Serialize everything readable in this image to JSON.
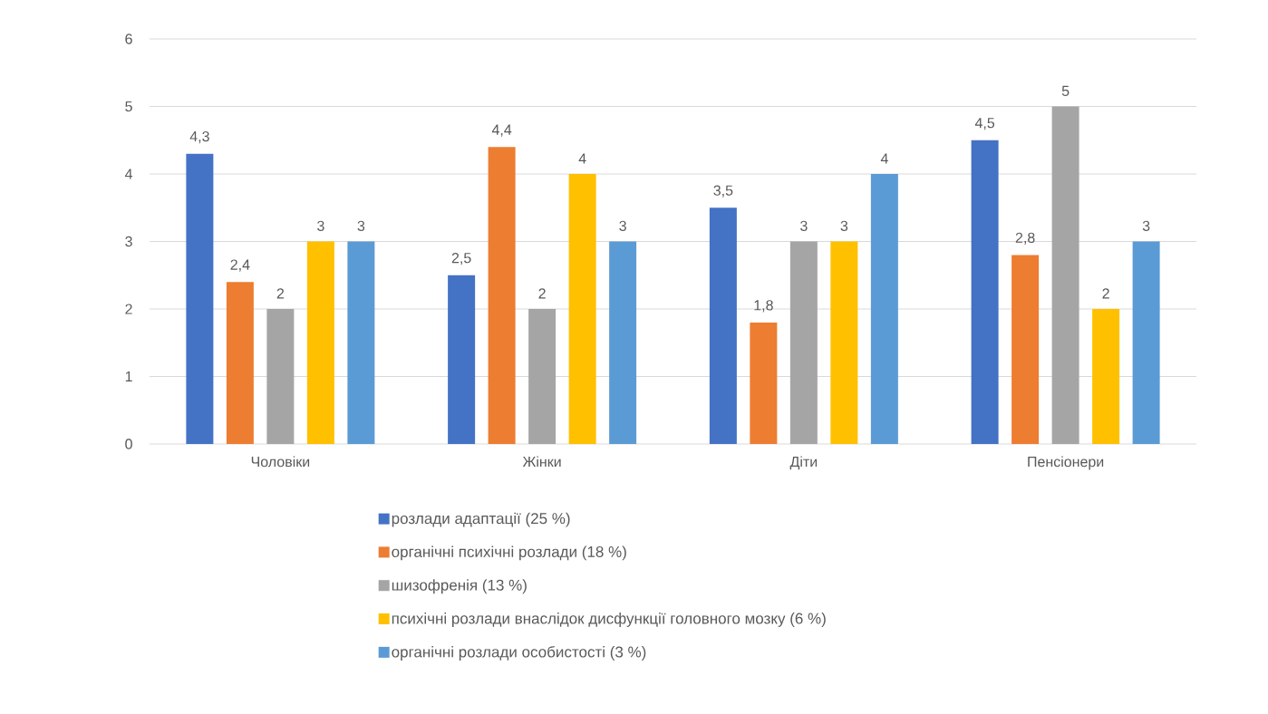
{
  "chart_data": {
    "type": "bar",
    "categories": [
      "Чоловіки",
      "Жінки",
      "Діти",
      "Пенсіонери"
    ],
    "series": [
      {
        "name": "розлади адаптації (25 %)",
        "color": "#4472c4",
        "values": [
          4.3,
          2.5,
          3.5,
          4.5
        ],
        "value_labels": [
          "4,3",
          "2,5",
          "3,5",
          "4,5"
        ]
      },
      {
        "name": "органічні психічні розлади (18 %)",
        "color": "#ed7d31",
        "values": [
          2.4,
          4.4,
          1.8,
          2.8
        ],
        "value_labels": [
          "2,4",
          "4,4",
          "1,8",
          "2,8"
        ]
      },
      {
        "name": "шизофренія (13 %)",
        "color": "#a5a5a5",
        "values": [
          2,
          2,
          3,
          5
        ],
        "value_labels": [
          "2",
          "2",
          "3",
          "5"
        ]
      },
      {
        "name": "психічні розлади внаслідок дисфункції головного мозку (6 %)",
        "color": "#ffc000",
        "values": [
          3,
          4,
          3,
          2
        ],
        "value_labels": [
          "3",
          "4",
          "3",
          "2"
        ]
      },
      {
        "name": "органічні розлади особистості (3 %)",
        "color": "#5b9bd5",
        "values": [
          3,
          3,
          4,
          3
        ],
        "value_labels": [
          "3",
          "3",
          "4",
          "3"
        ]
      }
    ],
    "ylim": [
      0,
      6
    ],
    "yticks": [
      0,
      1,
      2,
      3,
      4,
      5,
      6
    ],
    "grid": "y",
    "legend": "bottom"
  }
}
